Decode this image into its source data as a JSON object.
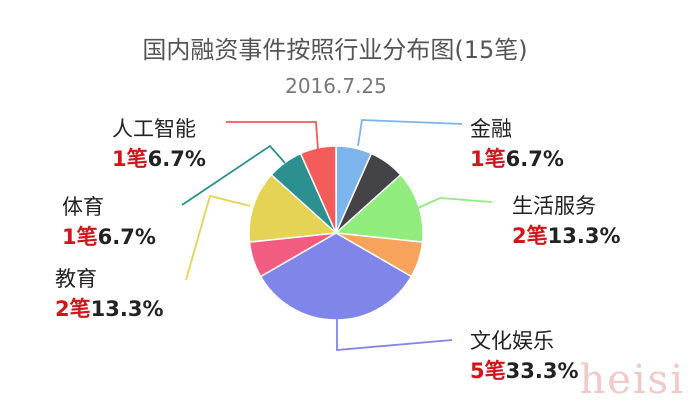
{
  "chart_data": {
    "type": "pie",
    "title": "国内融资事件按照行业分布图(15笔)",
    "subtitle": "2016.7.25",
    "unit": "笔",
    "slices": [
      {
        "name": "金融",
        "count": "1",
        "value": 1,
        "percent": "6.7%",
        "color": "#7cb4ec"
      },
      {
        "name": "",
        "count": "",
        "value": 1,
        "percent": "",
        "color": "#434348"
      },
      {
        "name": "生活服务",
        "count": "2",
        "value": 2,
        "percent": "13.3%",
        "color": "#90ed7d"
      },
      {
        "name": "",
        "count": "",
        "value": 1,
        "percent": "",
        "color": "#f7a35c"
      },
      {
        "name": "文化娱乐",
        "count": "5",
        "value": 5,
        "percent": "33.3%",
        "color": "#8085e9"
      },
      {
        "name": "",
        "count": "",
        "value": 1,
        "percent": "",
        "color": "#f15c80"
      },
      {
        "name": "教育",
        "count": "2",
        "value": 2,
        "percent": "13.3%",
        "color": "#e4d354"
      },
      {
        "name": "体育",
        "count": "1",
        "value": 1,
        "percent": "6.7%",
        "color": "#2b908f"
      },
      {
        "name": "人工智能",
        "count": "1",
        "value": 1,
        "percent": "6.7%",
        "color": "#f45b5b"
      }
    ]
  },
  "watermark": "heisi"
}
